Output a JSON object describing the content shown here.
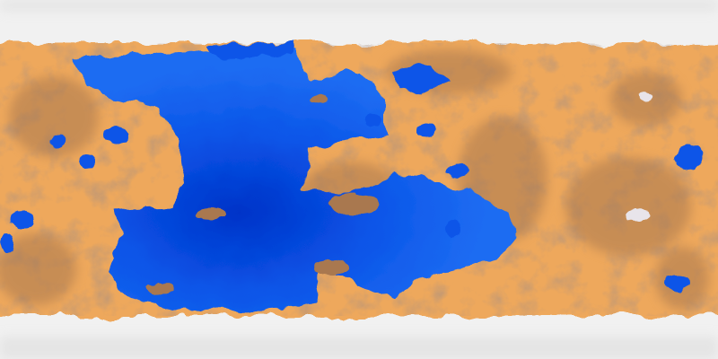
{
  "image": {
    "kind": "equirectangular-planet-map",
    "colors": {
      "ocean_deep": "#0033c8",
      "ocean": "#0a55e8",
      "ocean_light": "#1e6cf2",
      "land": "#eea85c",
      "land_dark": "#a9784f",
      "mountain": "#7e6a6a",
      "ice": "#f1f1f1",
      "ice_shadow": "#d8d8d8",
      "snow_peak": "#e8e4ea"
    }
  }
}
